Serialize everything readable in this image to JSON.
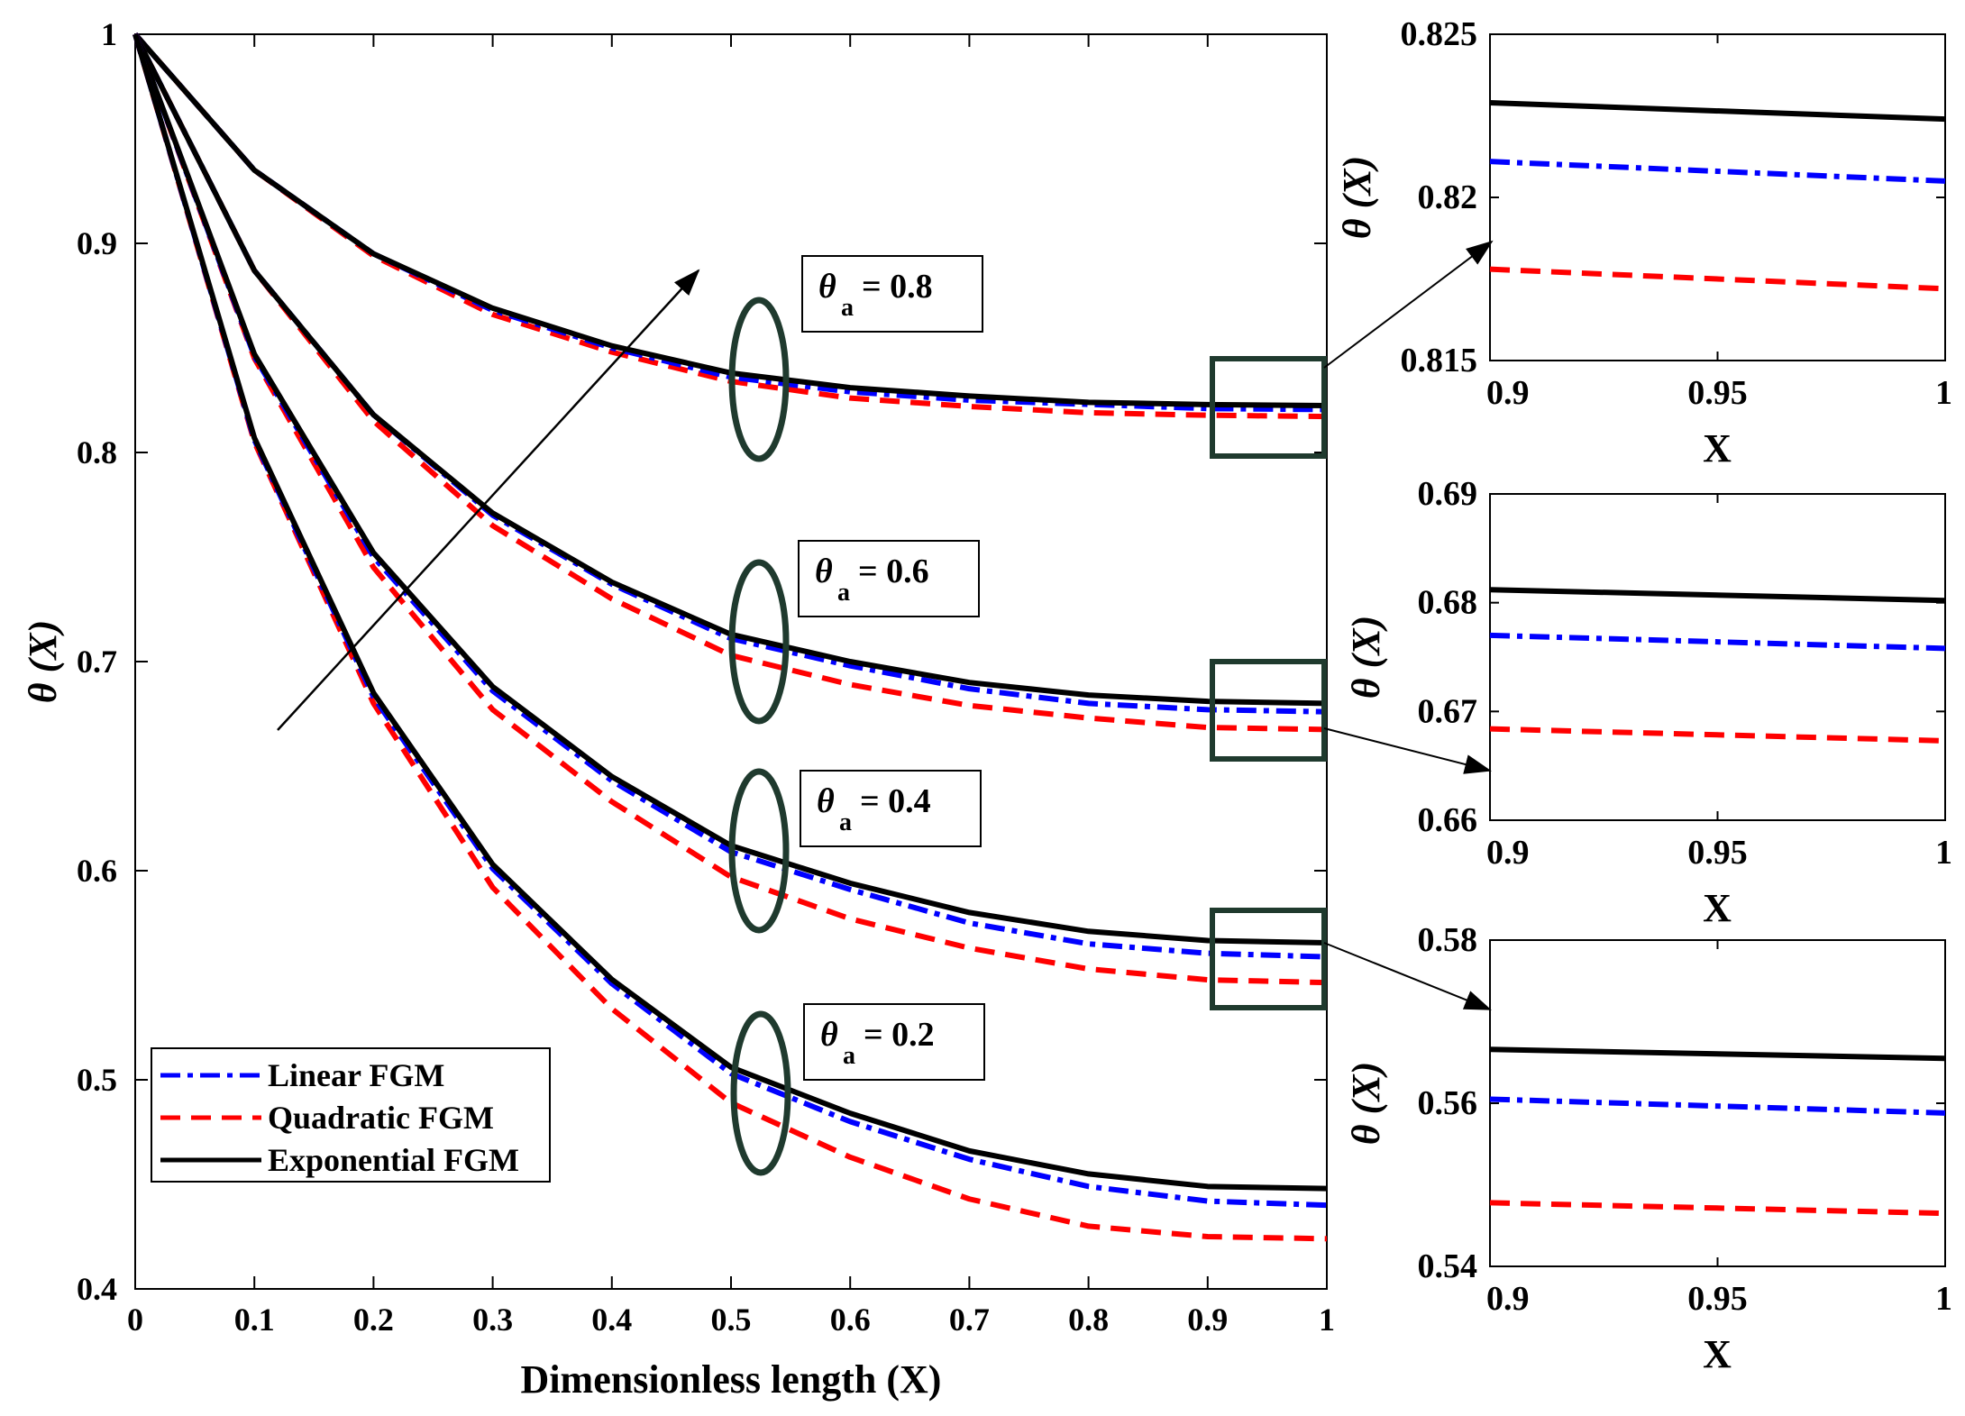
{
  "chart_data": [
    {
      "type": "line",
      "id": "main",
      "xlabel": "Dimensionless length (X)",
      "ylabel": "θ (X)",
      "xlim": [
        0,
        1
      ],
      "ylim": [
        0.4,
        1
      ],
      "xticks": [
        0,
        0.1,
        0.2,
        0.3,
        0.4,
        0.5,
        0.6,
        0.7,
        0.8,
        0.9,
        1
      ],
      "xtick_labels": [
        "0",
        "0.1",
        "0.2",
        "0.3",
        "0.4",
        "0.5",
        "0.6",
        "0.7",
        "0.8",
        "0.9",
        "1"
      ],
      "yticks": [
        0.4,
        0.5,
        0.6,
        0.7,
        0.8,
        0.9,
        1
      ],
      "ytick_labels": [
        "0.4",
        "0.5",
        "0.6",
        "0.7",
        "0.8",
        "0.9",
        "1"
      ],
      "x": [
        0,
        0.1,
        0.2,
        0.3,
        0.4,
        0.5,
        0.6,
        0.7,
        0.8,
        0.9,
        1
      ],
      "legend": {
        "position": "bottom-left",
        "entries": [
          {
            "name": "Linear FGM",
            "color": "#0000ff",
            "style": "dash-dot"
          },
          {
            "name": "Quadratic FGM",
            "color": "#ff0000",
            "style": "dashed"
          },
          {
            "name": "Exponential FGM",
            "color": "#000000",
            "style": "solid"
          }
        ]
      },
      "groups": [
        {
          "label_main": "θ",
          "label_sub": "a",
          "label_value": "= 0.8",
          "series": [
            {
              "name": "Linear FGM",
              "values": [
                1,
                0.935,
                0.895,
                0.868,
                0.85,
                0.836,
                0.829,
                0.825,
                0.823,
                0.821,
                0.8205
              ]
            },
            {
              "name": "Quadratic FGM",
              "values": [
                1,
                0.935,
                0.894,
                0.866,
                0.848,
                0.834,
                0.826,
                0.822,
                0.819,
                0.8178,
                0.8172
              ]
            },
            {
              "name": "Exponential FGM",
              "values": [
                1,
                0.935,
                0.895,
                0.869,
                0.851,
                0.838,
                0.831,
                0.827,
                0.824,
                0.8229,
                0.8224
              ]
            }
          ]
        },
        {
          "label_main": "θ",
          "label_sub": "a",
          "label_value": "= 0.6",
          "series": [
            {
              "name": "Linear FGM",
              "values": [
                1,
                0.887,
                0.818,
                0.77,
                0.737,
                0.711,
                0.698,
                0.687,
                0.68,
                0.677,
                0.676
              ]
            },
            {
              "name": "Quadratic FGM",
              "values": [
                1,
                0.887,
                0.815,
                0.765,
                0.73,
                0.703,
                0.689,
                0.679,
                0.673,
                0.6685,
                0.6675
              ]
            },
            {
              "name": "Exponential FGM",
              "values": [
                1,
                0.887,
                0.818,
                0.771,
                0.738,
                0.713,
                0.7,
                0.69,
                0.684,
                0.681,
                0.68
              ]
            }
          ]
        },
        {
          "label_main": "θ",
          "label_sub": "a",
          "label_value": "= 0.4",
          "series": [
            {
              "name": "Linear FGM",
              "values": [
                1,
                0.846,
                0.75,
                0.686,
                0.643,
                0.609,
                0.591,
                0.575,
                0.565,
                0.5605,
                0.5588
              ]
            },
            {
              "name": "Quadratic FGM",
              "values": [
                1,
                0.845,
                0.745,
                0.677,
                0.633,
                0.597,
                0.577,
                0.563,
                0.553,
                0.5478,
                0.5465
              ]
            },
            {
              "name": "Exponential FGM",
              "values": [
                1,
                0.847,
                0.752,
                0.688,
                0.645,
                0.612,
                0.594,
                0.58,
                0.571,
                0.5666,
                0.5655
              ]
            }
          ]
        },
        {
          "label_main": "θ",
          "label_sub": "a",
          "label_value": "= 0.2",
          "series": [
            {
              "name": "Linear FGM",
              "values": [
                1,
                0.806,
                0.683,
                0.601,
                0.546,
                0.503,
                0.48,
                0.462,
                0.449,
                0.442,
                0.44
              ]
            },
            {
              "name": "Quadratic FGM",
              "values": [
                1,
                0.805,
                0.68,
                0.592,
                0.534,
                0.489,
                0.463,
                0.443,
                0.43,
                0.425,
                0.424
              ]
            },
            {
              "name": "Exponential FGM",
              "values": [
                1,
                0.807,
                0.685,
                0.603,
                0.548,
                0.506,
                0.484,
                0.466,
                0.455,
                0.449,
                0.448
              ]
            }
          ]
        }
      ]
    },
    {
      "type": "line",
      "id": "inset-1",
      "xlabel": "X",
      "ylabel": "θ (X)",
      "xlim": [
        0.9,
        1
      ],
      "ylim": [
        0.815,
        0.825
      ],
      "xticks": [
        0.9,
        0.95,
        1
      ],
      "xtick_labels": [
        "0.9",
        "0.95",
        "1"
      ],
      "yticks": [
        0.815,
        0.82,
        0.825
      ],
      "ytick_labels": [
        "0.815",
        "0.82",
        "0.825"
      ],
      "x": [
        0.9,
        1
      ],
      "series": [
        {
          "name": "Exponential FGM",
          "values": [
            0.8229,
            0.8224
          ]
        },
        {
          "name": "Linear FGM",
          "values": [
            0.8211,
            0.8205
          ]
        },
        {
          "name": "Quadratic FGM",
          "values": [
            0.8178,
            0.8172
          ]
        }
      ]
    },
    {
      "type": "line",
      "id": "inset-2",
      "xlabel": "X",
      "ylabel": "θ (X)",
      "xlim": [
        0.9,
        1
      ],
      "ylim": [
        0.66,
        0.69
      ],
      "xticks": [
        0.9,
        0.95,
        1
      ],
      "xtick_labels": [
        "0.9",
        "0.95",
        "1"
      ],
      "yticks": [
        0.66,
        0.67,
        0.68,
        0.69
      ],
      "ytick_labels": [
        "0.66",
        "0.67",
        "0.68",
        "0.69"
      ],
      "x": [
        0.9,
        1
      ],
      "series": [
        {
          "name": "Exponential FGM",
          "values": [
            0.6812,
            0.6802
          ]
        },
        {
          "name": "Linear FGM",
          "values": [
            0.677,
            0.6758
          ]
        },
        {
          "name": "Quadratic FGM",
          "values": [
            0.6684,
            0.6673
          ]
        }
      ]
    },
    {
      "type": "line",
      "id": "inset-3",
      "xlabel": "X",
      "ylabel": "θ (X)",
      "xlim": [
        0.9,
        1
      ],
      "ylim": [
        0.54,
        0.58
      ],
      "xticks": [
        0.9,
        0.95,
        1
      ],
      "xtick_labels": [
        "0.9",
        "0.95",
        "1"
      ],
      "yticks": [
        0.54,
        0.56,
        0.58
      ],
      "ytick_labels": [
        "0.54",
        "0.56",
        "0.58"
      ],
      "x": [
        0.9,
        1
      ],
      "series": [
        {
          "name": "Exponential FGM",
          "values": [
            0.5666,
            0.5655
          ]
        },
        {
          "name": "Linear FGM",
          "values": [
            0.5605,
            0.5588
          ]
        },
        {
          "name": "Quadratic FGM",
          "values": [
            0.5478,
            0.5465
          ]
        }
      ]
    }
  ]
}
